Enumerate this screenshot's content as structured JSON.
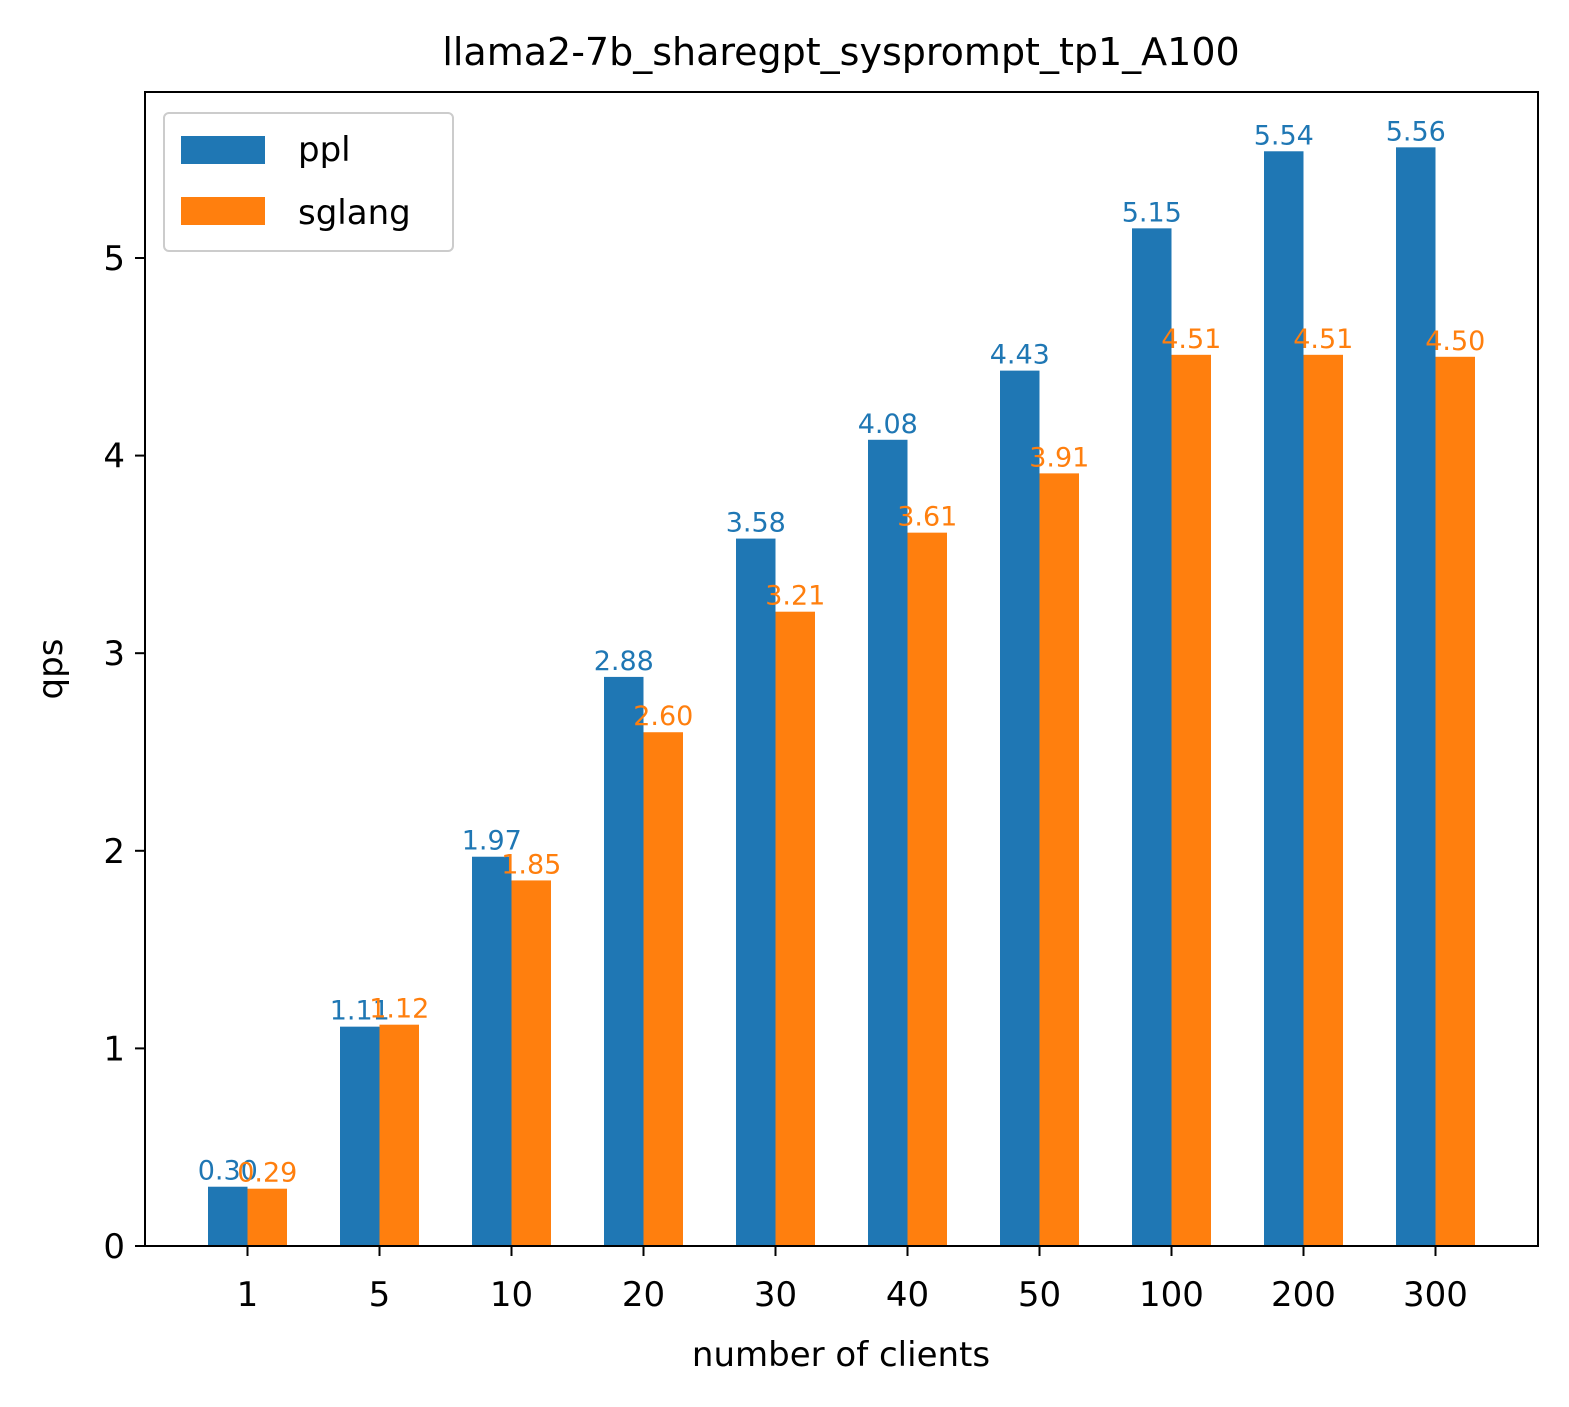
{
  "chart_data": {
    "type": "bar",
    "title": "llama2-7b_sharegpt_sysprompt_tp1_A100",
    "xlabel": "number of clients",
    "ylabel": "qps",
    "categories": [
      "1",
      "5",
      "10",
      "20",
      "30",
      "40",
      "50",
      "100",
      "200",
      "300"
    ],
    "series": [
      {
        "name": "ppl",
        "color": "#1f77b4",
        "values": [
          0.3,
          1.11,
          1.97,
          2.88,
          3.58,
          4.08,
          4.43,
          5.15,
          5.54,
          5.56
        ],
        "labels": [
          "0.30",
          "1.11",
          "1.97",
          "2.88",
          "3.58",
          "4.08",
          "4.43",
          "5.15",
          "5.54",
          "5.56"
        ]
      },
      {
        "name": "sglang",
        "color": "#ff7f0e",
        "values": [
          0.29,
          1.12,
          1.85,
          2.6,
          3.21,
          3.61,
          3.91,
          4.51,
          4.51,
          4.5
        ],
        "labels": [
          "0.29",
          "1.12",
          "1.85",
          "2.60",
          "3.21",
          "3.61",
          "3.91",
          "4.51",
          "4.51",
          "4.50"
        ]
      }
    ],
    "yticks": [
      0,
      1,
      2,
      3,
      4,
      5
    ],
    "ytick_labels": [
      "0",
      "1",
      "2",
      "3",
      "4",
      "5"
    ],
    "ylim": [
      0,
      5.84
    ],
    "grid": false,
    "legend_position": "top-left"
  }
}
